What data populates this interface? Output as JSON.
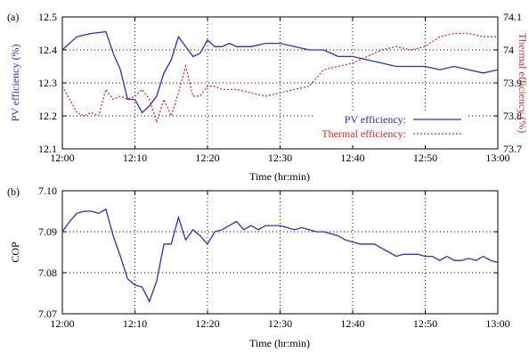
{
  "colors": {
    "blue": "#2b2bdb",
    "red": "#e8262b",
    "axis": "#000000"
  },
  "chart_data": [
    {
      "type": "line",
      "panel_label": "(a)",
      "xlabel": "Time (hr:min)",
      "ylabel_left": "PV efficiency (%)",
      "ylabel_right": "Thermal efficiency (%)",
      "grid": true,
      "legend_position": "lower-right",
      "x_ticks": [
        "12:00",
        "12:10",
        "12:20",
        "12:30",
        "12:40",
        "12:50",
        "13:00"
      ],
      "xlim": [
        0,
        60
      ],
      "y_left_ticks": [
        "12.1",
        "12.2",
        "12.3",
        "12.4",
        "12.5"
      ],
      "ylim_left": [
        12.1,
        12.5
      ],
      "y_right_ticks": [
        "73.7",
        "73.8",
        "73.9",
        "74",
        "74.1"
      ],
      "ylim_right": [
        73.7,
        74.1
      ],
      "series": [
        {
          "name": "PV efficiency:",
          "axis": "left",
          "color": "#2b2bdb",
          "style": "solid",
          "x": [
            0,
            2,
            4,
            6,
            7,
            8,
            9,
            10,
            11,
            12,
            13,
            14,
            15,
            16,
            17,
            18,
            19,
            20,
            21,
            22,
            23,
            24,
            26,
            28,
            30,
            32,
            34,
            36,
            38,
            40,
            42,
            44,
            46,
            48,
            50,
            52,
            54,
            56,
            58,
            60
          ],
          "values": [
            12.4,
            12.44,
            12.45,
            12.455,
            12.39,
            12.34,
            12.25,
            12.25,
            12.21,
            12.23,
            12.26,
            12.33,
            12.37,
            12.44,
            12.41,
            12.38,
            12.39,
            12.43,
            12.41,
            12.41,
            12.42,
            12.41,
            12.41,
            12.42,
            12.42,
            12.41,
            12.4,
            12.4,
            12.38,
            12.38,
            12.37,
            12.36,
            12.35,
            12.35,
            12.35,
            12.34,
            12.35,
            12.34,
            12.33,
            12.34
          ]
        },
        {
          "name": "Thermal efficiency:",
          "axis": "right",
          "color": "#e8262b",
          "style": "dashed",
          "x": [
            0,
            1,
            2,
            3,
            4,
            5,
            6,
            7,
            8,
            9,
            10,
            11,
            12,
            13,
            14,
            15,
            16,
            17,
            18,
            19,
            20,
            21,
            22,
            23,
            24,
            26,
            28,
            30,
            32,
            34,
            36,
            38,
            40,
            42,
            44,
            46,
            48,
            50,
            52,
            54,
            56,
            58,
            60
          ],
          "values": [
            73.89,
            73.85,
            73.81,
            73.8,
            73.81,
            73.8,
            73.88,
            73.85,
            73.86,
            73.85,
            73.86,
            73.88,
            73.85,
            73.78,
            73.85,
            73.8,
            73.87,
            73.95,
            73.86,
            73.86,
            73.89,
            73.89,
            73.88,
            73.88,
            73.88,
            73.87,
            73.86,
            73.87,
            73.88,
            73.89,
            73.94,
            73.95,
            73.96,
            73.98,
            74.0,
            74.01,
            74.0,
            74.01,
            74.04,
            74.05,
            74.05,
            74.04,
            74.04
          ]
        }
      ]
    },
    {
      "type": "line",
      "panel_label": "(b)",
      "xlabel": "Time (hr:min)",
      "ylabel": "COP",
      "grid": true,
      "x_ticks": [
        "12:00",
        "12:10",
        "12:20",
        "12:30",
        "12:40",
        "12:50",
        "13:00"
      ],
      "xlim": [
        0,
        60
      ],
      "y_ticks": [
        "7.07",
        "7.08",
        "7.09",
        "7.10"
      ],
      "ylim": [
        7.07,
        7.1
      ],
      "series": [
        {
          "color": "#2b2bdb",
          "style": "solid",
          "x": [
            0,
            1,
            2,
            3,
            4,
            5,
            6,
            7,
            8,
            9,
            10,
            11,
            12,
            13,
            14,
            15,
            16,
            17,
            18,
            19,
            20,
            21,
            22,
            23,
            24,
            25,
            26,
            27,
            28,
            29,
            30,
            31,
            32,
            33,
            34,
            35,
            36,
            37,
            38,
            39,
            40,
            41,
            42,
            43,
            44,
            45,
            46,
            47,
            48,
            49,
            50,
            51,
            52,
            53,
            54,
            55,
            56,
            57,
            58,
            59,
            60
          ],
          "values": [
            7.09,
            7.0925,
            7.0945,
            7.095,
            7.095,
            7.0945,
            7.0955,
            7.089,
            7.084,
            7.0785,
            7.077,
            7.0765,
            7.073,
            7.078,
            7.087,
            7.087,
            7.0935,
            7.088,
            7.0905,
            7.089,
            7.087,
            7.09,
            7.0905,
            7.0915,
            7.0925,
            7.0905,
            7.0915,
            7.0905,
            7.0915,
            7.0915,
            7.0915,
            7.091,
            7.0905,
            7.091,
            7.0905,
            7.09,
            7.09,
            7.0895,
            7.089,
            7.088,
            7.0875,
            7.087,
            7.087,
            7.087,
            7.086,
            7.085,
            7.084,
            7.0845,
            7.0845,
            7.0845,
            7.084,
            7.084,
            7.083,
            7.084,
            7.083,
            7.083,
            7.0835,
            7.083,
            7.084,
            7.083,
            7.0825
          ]
        }
      ]
    }
  ]
}
